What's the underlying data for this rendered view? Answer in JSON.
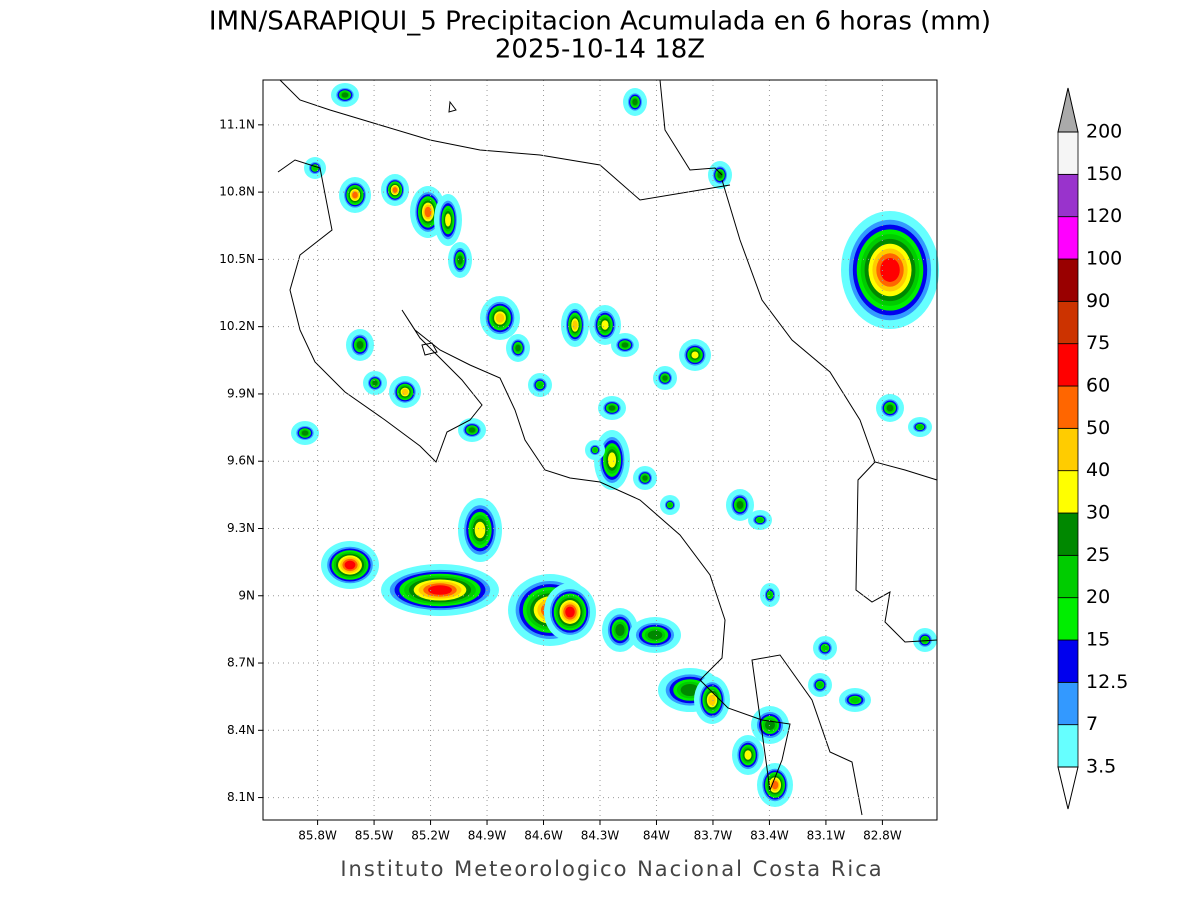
{
  "title": "IMN/SARAPIQUI_5 Precipitacion Acumulada en 6 horas (mm)",
  "subtitle": "2025-10-14 18Z",
  "map": {
    "xlim": [
      -86.09,
      -82.51
    ],
    "ylim": [
      8.0,
      11.3
    ],
    "grid": true,
    "xticks": [
      {
        "value": -85.8,
        "label": "85.8W"
      },
      {
        "value": -85.5,
        "label": "85.5W"
      },
      {
        "value": -85.2,
        "label": "85.2W"
      },
      {
        "value": -84.9,
        "label": "84.9W"
      },
      {
        "value": -84.6,
        "label": "84.6W"
      },
      {
        "value": -84.3,
        "label": "84.3W"
      },
      {
        "value": -84,
        "label": "84W"
      },
      {
        "value": -83.7,
        "label": "83.7W"
      },
      {
        "value": -83.4,
        "label": "83.4W"
      },
      {
        "value": -83.1,
        "label": "83.1W"
      },
      {
        "value": -82.8,
        "label": "82.8W"
      }
    ],
    "yticks": [
      {
        "value": 8.1,
        "label": "8.1N"
      },
      {
        "value": 8.4,
        "label": "8.4N"
      },
      {
        "value": 8.7,
        "label": "8.7N"
      },
      {
        "value": 9,
        "label": "9N"
      },
      {
        "value": 9.3,
        "label": "9.3N"
      },
      {
        "value": 9.6,
        "label": "9.6N"
      },
      {
        "value": 9.9,
        "label": "9.9N"
      },
      {
        "value": 10.2,
        "label": "10.2N"
      },
      {
        "value": 10.5,
        "label": "10.5N"
      },
      {
        "value": 10.8,
        "label": "10.8N"
      },
      {
        "value": 11.1,
        "label": "11.1N"
      }
    ]
  },
  "colorbar": {
    "levels": [
      3.5,
      7,
      12.5,
      15,
      20,
      25,
      30,
      40,
      50,
      60,
      75,
      90,
      100,
      120,
      150,
      200
    ],
    "colors": [
      "#66ffff",
      "#3399ff",
      "#0000ee",
      "#00ee00",
      "#00cc00",
      "#008800",
      "#ffff00",
      "#ffcc00",
      "#ff6600",
      "#ff0000",
      "#cc3300",
      "#990000",
      "#ff00ff",
      "#9933cc",
      "#f5f5f5"
    ],
    "under_color": "#ffffff",
    "over_color": "#aaaaaa"
  },
  "footer": "Instituto Meteorologico Nacional Costa Rica"
}
